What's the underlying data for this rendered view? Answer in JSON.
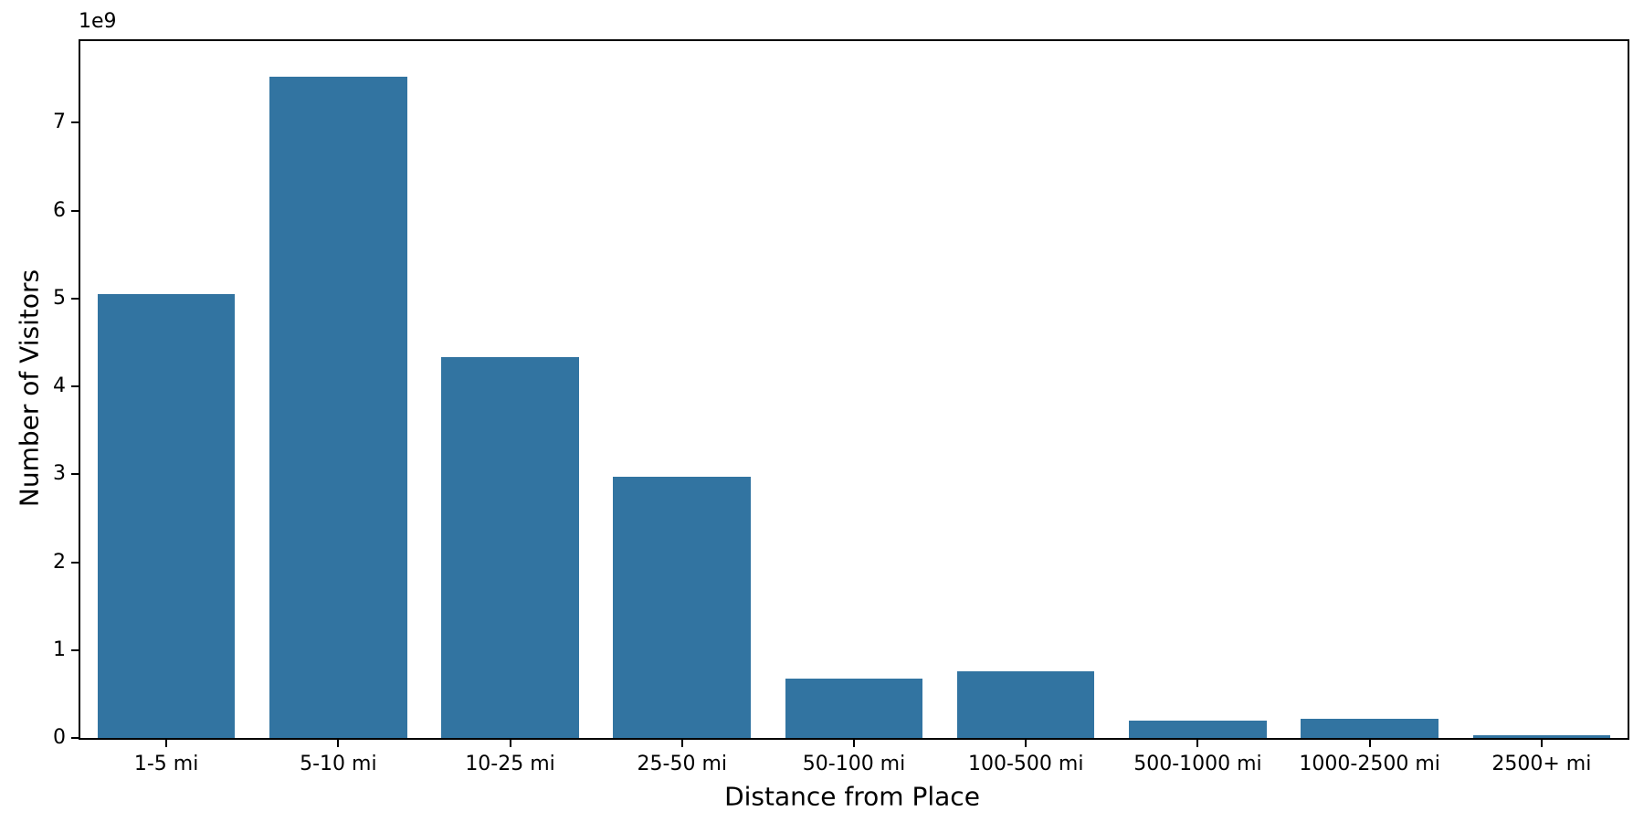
{
  "figure": {
    "background": "#ffffff",
    "spine_color": "#000000"
  },
  "chart_data": {
    "type": "bar",
    "title": "",
    "xlabel": "Distance from Place",
    "ylabel": "Number of Visitors",
    "offset_text": "1e9",
    "categories": [
      "1-5 mi",
      "5-10 mi",
      "10-25 mi",
      "25-50 mi",
      "50-100 mi",
      "100-500 mi",
      "500-1000 mi",
      "1000-2500 mi",
      "2500+ mi"
    ],
    "values": [
      5050000000,
      7520000000,
      4330000000,
      2970000000,
      680000000,
      760000000,
      200000000,
      220000000,
      30000000
    ],
    "bar_color": "#3274A1",
    "bar_width_fraction": 0.8,
    "ylim": [
      0,
      7930000000
    ],
    "yticks": [
      0,
      1000000000,
      2000000000,
      3000000000,
      4000000000,
      5000000000,
      6000000000,
      7000000000
    ],
    "ytick_labels": [
      "0",
      "1",
      "2",
      "3",
      "4",
      "5",
      "6",
      "7"
    ],
    "grid": false,
    "legend": null
  }
}
